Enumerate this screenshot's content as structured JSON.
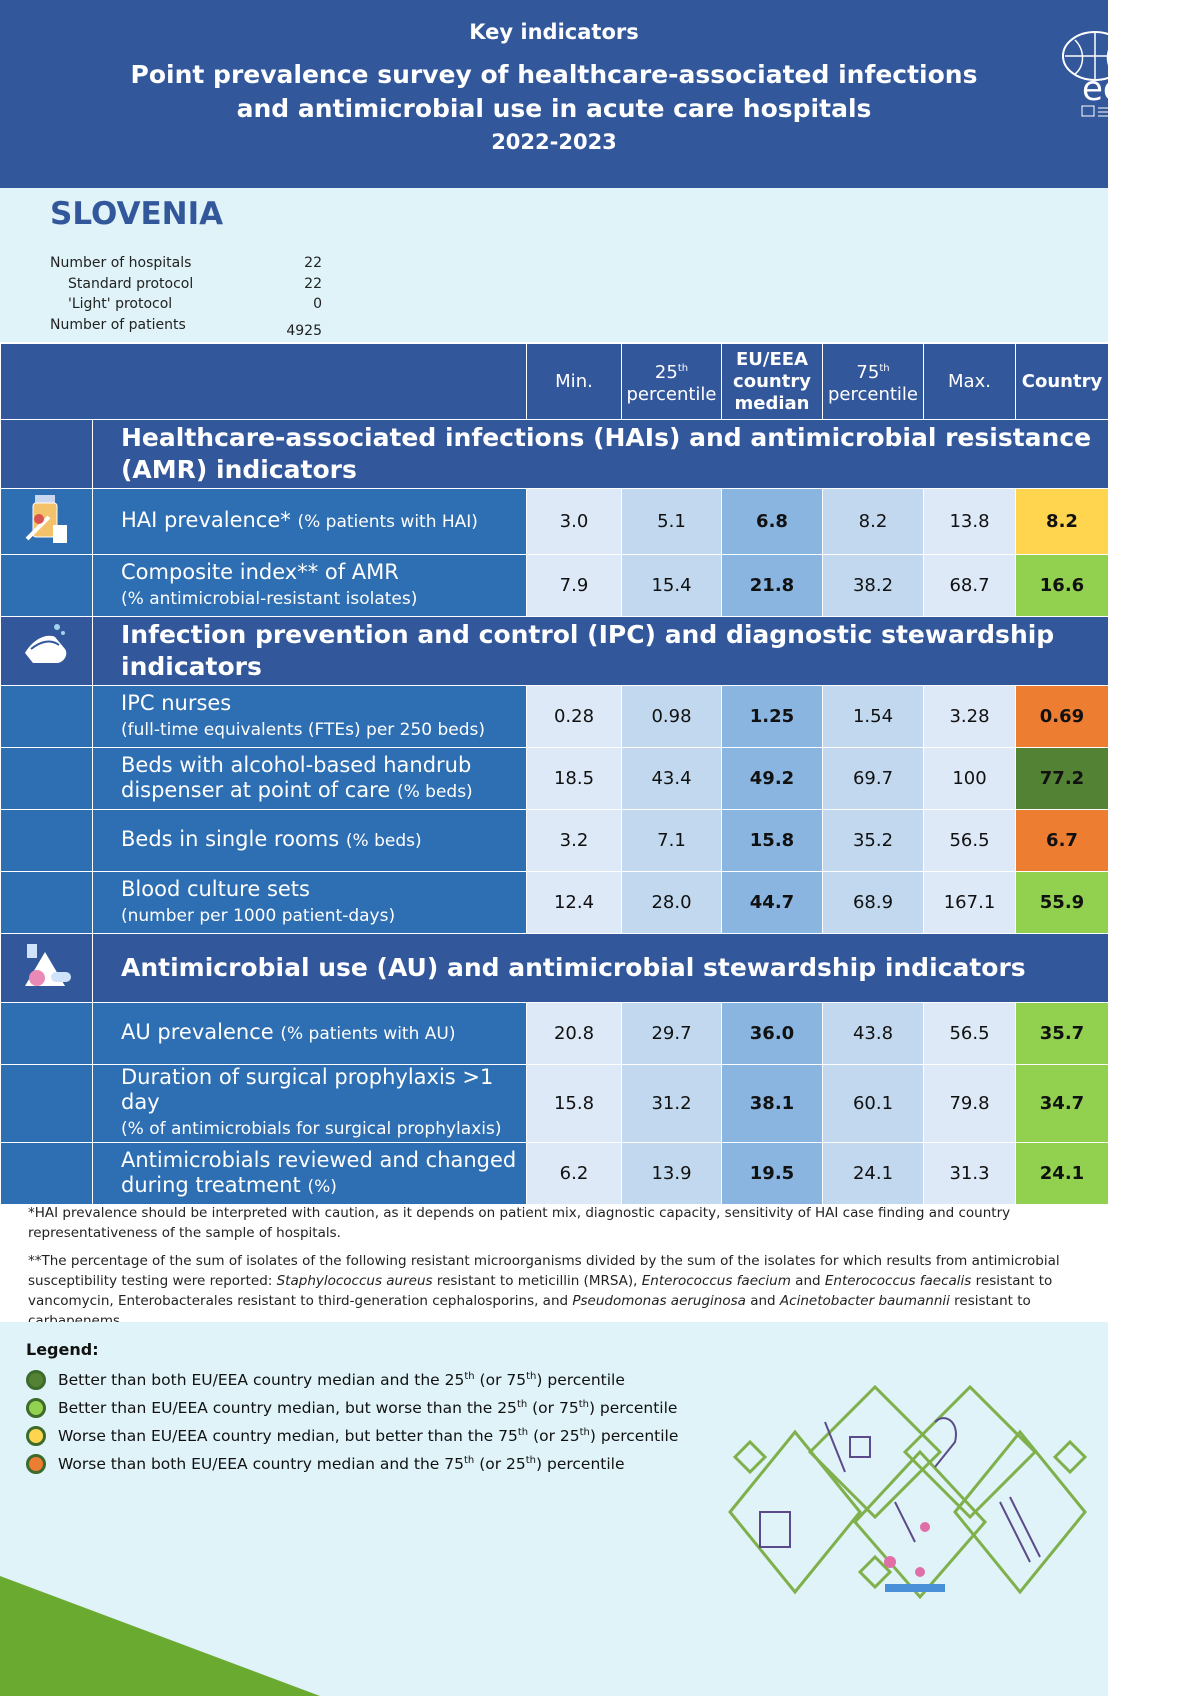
{
  "header": {
    "kicker": "Key indicators",
    "title_line1": "Point prevalence survey of healthcare-associated infections",
    "title_line2": "and antimicrobial use in acute care hospitals",
    "years": "2022-2023",
    "logo": "ecdc"
  },
  "country": "SLOVENIA",
  "stats": [
    {
      "label": "Number of hospitals",
      "value": "22"
    },
    {
      "label": "Standard protocol",
      "value": "22"
    },
    {
      "label": "'Light' protocol",
      "value": "0"
    },
    {
      "label": "Number of patients",
      "value": "4925"
    }
  ],
  "columns": {
    "min": "Min.",
    "p25": "percentile",
    "p25_num": "25",
    "p25_sup": "th",
    "median_l1": "EU/EEA",
    "median_l2": "country",
    "median_l3": "median",
    "p75": "percentile",
    "p75_num": "75",
    "p75_sup": "th",
    "max": "Max.",
    "country": "Country"
  },
  "colors": {
    "header_blue": "#33579b",
    "row_blue": "#2e6fb3",
    "median": "#8ab5e0",
    "dark_green": "#548235",
    "light_green": "#92d050",
    "yellow": "#ffd54f",
    "orange": "#ed7d31"
  },
  "sections": [
    {
      "title": "Healthcare-associated infections (HAIs) and antimicrobial resistance (AMR) indicators",
      "icon": "medicine-icon",
      "rows": [
        {
          "label": "HAI prevalence*",
          "sub": "(% patients with HAI)",
          "inline": true,
          "values": [
            "3.0",
            "5.1",
            "6.8",
            "8.2",
            "13.8"
          ],
          "country": "8.2",
          "status": "yellow"
        },
        {
          "label": "Composite index** of AMR",
          "sub": "(% antimicrobial-resistant isolates)",
          "values": [
            "7.9",
            "15.4",
            "21.8",
            "38.2",
            "68.7"
          ],
          "country": "16.6",
          "status": "light_green"
        }
      ]
    },
    {
      "title": "Infection prevention and control (IPC) and diagnostic stewardship indicators",
      "icon": "handwashing-icon",
      "rows": [
        {
          "label": "IPC nurses",
          "sub": "(full-time equivalents (FTEs) per 250 beds)",
          "values": [
            "0.28",
            "0.98",
            "1.25",
            "1.54",
            "3.28"
          ],
          "country": "0.69",
          "status": "orange"
        },
        {
          "label": "Beds with alcohol-based handrub",
          "label2": "dispenser at point of care",
          "sub": "(% beds)",
          "inline2": true,
          "values": [
            "18.5",
            "43.4",
            "49.2",
            "69.7",
            "100"
          ],
          "country": "77.2",
          "status": "dark_green"
        },
        {
          "label": "Beds in single rooms",
          "sub": "(% beds)",
          "inline": true,
          "values": [
            "3.2",
            "7.1",
            "15.8",
            "35.2",
            "56.5"
          ],
          "country": "6.7",
          "status": "orange"
        },
        {
          "label": "Blood culture sets",
          "sub": "(number per 1000 patient-days)",
          "values": [
            "12.4",
            "28.0",
            "44.7",
            "68.9",
            "167.1"
          ],
          "country": "55.9",
          "status": "light_green"
        }
      ]
    },
    {
      "title": "Antimicrobial use (AU) and antimicrobial stewardship indicators",
      "icon": "pills-icon",
      "rows": [
        {
          "label": "AU prevalence",
          "sub": "(% patients with AU)",
          "inline": true,
          "values": [
            "20.8",
            "29.7",
            "36.0",
            "43.8",
            "56.5"
          ],
          "country": "35.7",
          "status": "light_green"
        },
        {
          "label": "Duration of surgical prophylaxis >1 day",
          "sub": "(% of antimicrobials for surgical prophylaxis)",
          "values": [
            "15.8",
            "31.2",
            "38.1",
            "60.1",
            "79.8"
          ],
          "country": "34.7",
          "status": "light_green"
        },
        {
          "label": "Antimicrobials reviewed and changed",
          "label2": "during treatment",
          "sub": "(%)",
          "inline2": true,
          "values": [
            "6.2",
            "13.9",
            "19.5",
            "24.1",
            "31.3"
          ],
          "country": "24.1",
          "status": "light_green"
        }
      ]
    }
  ],
  "notes": {
    "n1": "*HAI prevalence should be interpreted with caution, as it depends on patient mix, diagnostic capacity, sensitivity of HAI case finding and country representativeness of the sample of hospitals.",
    "n2_a": "**The percentage of the sum of isolates of the following resistant microorganisms divided by the sum of the isolates for which results from antimicrobial susceptibility testing were reported: ",
    "n2_sa": "Staphylococcus aureus",
    "n2_b": " resistant to meticillin (MRSA), ",
    "n2_efm": "Enterococcus faecium",
    "n2_c": " and ",
    "n2_efs": "Enterococcus faecalis",
    "n2_d": " resistant to vancomycin, Enterobacterales resistant to third-generation cephalosporins, and ",
    "n2_pa": "Pseudomonas aeruginosa",
    "n2_e": " and ",
    "n2_ab": "Acinetobacter baumannii",
    "n2_f": " resistant to carbapenems."
  },
  "legend": {
    "title": "Legend:",
    "items": [
      {
        "color": "#548235",
        "text": "Better than both EU/EEA country median and the 25th (or 75th) percentile"
      },
      {
        "color": "#92d050",
        "text": "Better than EU/EEA country median, but worse than the 25th (or 75th) percentile"
      },
      {
        "color": "#ffd54f",
        "text": "Worse than EU/EEA country median, but better than the 75th (or 25th) percentile"
      },
      {
        "color": "#ed7d31",
        "text": "Worse than both EU/EEA country median and the 75th (or 25th) percentile"
      }
    ]
  }
}
